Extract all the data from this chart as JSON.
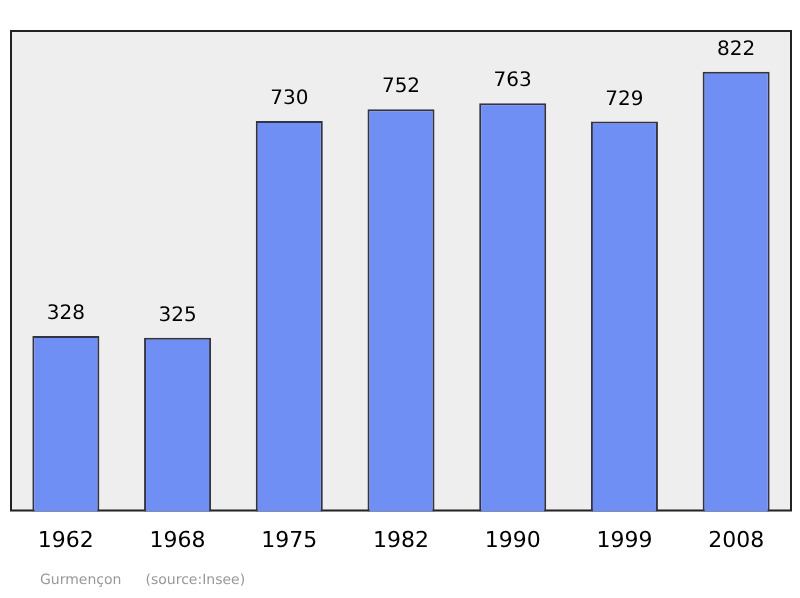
{
  "chart_data": {
    "type": "bar",
    "categories": [
      "1962",
      "1968",
      "1975",
      "1982",
      "1990",
      "1999",
      "2008"
    ],
    "values": [
      328,
      325,
      730,
      752,
      763,
      729,
      822
    ],
    "color": "#6f8ff5",
    "data_labels": true,
    "grid": false,
    "legend": false,
    "tick_labels": "x",
    "annotations": [
      "Gurmençon",
      "(source:Insee)"
    ]
  }
}
